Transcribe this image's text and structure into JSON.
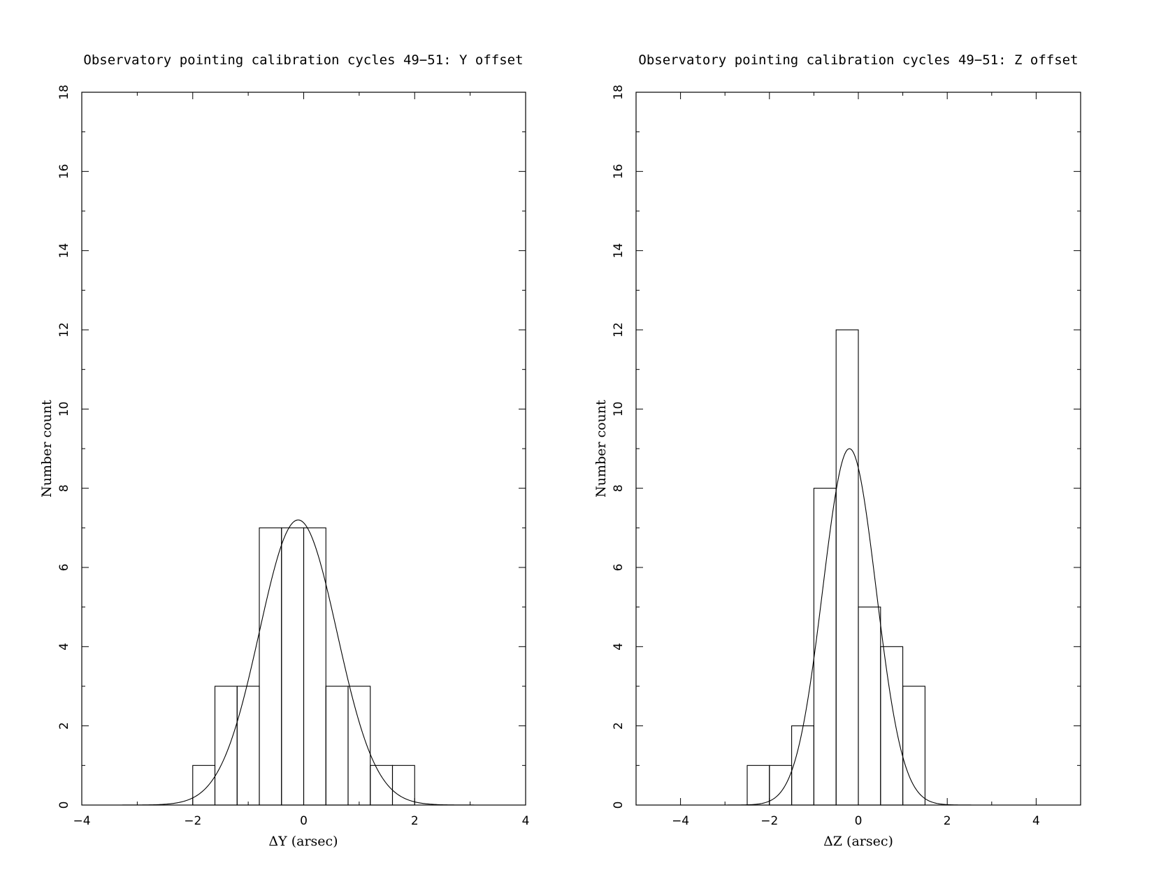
{
  "chart_data": [
    {
      "type": "bar",
      "title": "Observatory pointing calibration cycles 49−51: Y offset",
      "xlabel": "ΔY (arsec)",
      "ylabel": "Number count",
      "xlim": [
        -4,
        4
      ],
      "ylim": [
        0,
        18
      ],
      "x_ticks": [
        "−4",
        "−2",
        "0",
        "2",
        "4"
      ],
      "y_ticks": [
        "0",
        "2",
        "4",
        "6",
        "8",
        "10",
        "12",
        "14",
        "16",
        "18"
      ],
      "histogram": {
        "bin_edges": [
          -2.0,
          -1.6,
          -1.2,
          -0.8,
          -0.4,
          0.0,
          0.4,
          0.8,
          1.2,
          1.6,
          2.0
        ],
        "counts": [
          1,
          3,
          3,
          7,
          7,
          7,
          3,
          3,
          1,
          1
        ]
      },
      "gaussian_fit": {
        "amplitude": 7.2,
        "mean": -0.1,
        "sigma": 0.7
      }
    },
    {
      "type": "bar",
      "title": "Observatory pointing calibration cycles 49−51: Z offset",
      "xlabel": "ΔZ (arsec)",
      "ylabel": "Number count",
      "xlim": [
        -5,
        5
      ],
      "ylim": [
        0,
        18
      ],
      "x_ticks": [
        "−4",
        "−2",
        "0",
        "2",
        "4"
      ],
      "y_ticks": [
        "0",
        "2",
        "4",
        "6",
        "8",
        "10",
        "12",
        "14",
        "16",
        "18"
      ],
      "histogram": {
        "bin_edges": [
          -2.5,
          -2.0,
          -1.5,
          -1.0,
          -0.5,
          0.0,
          0.5,
          1.0,
          1.5
        ],
        "counts": [
          1,
          1,
          2,
          8,
          12,
          5,
          4,
          3
        ]
      },
      "gaussian_fit": {
        "amplitude": 9.0,
        "mean": -0.2,
        "sigma": 0.6
      }
    }
  ]
}
